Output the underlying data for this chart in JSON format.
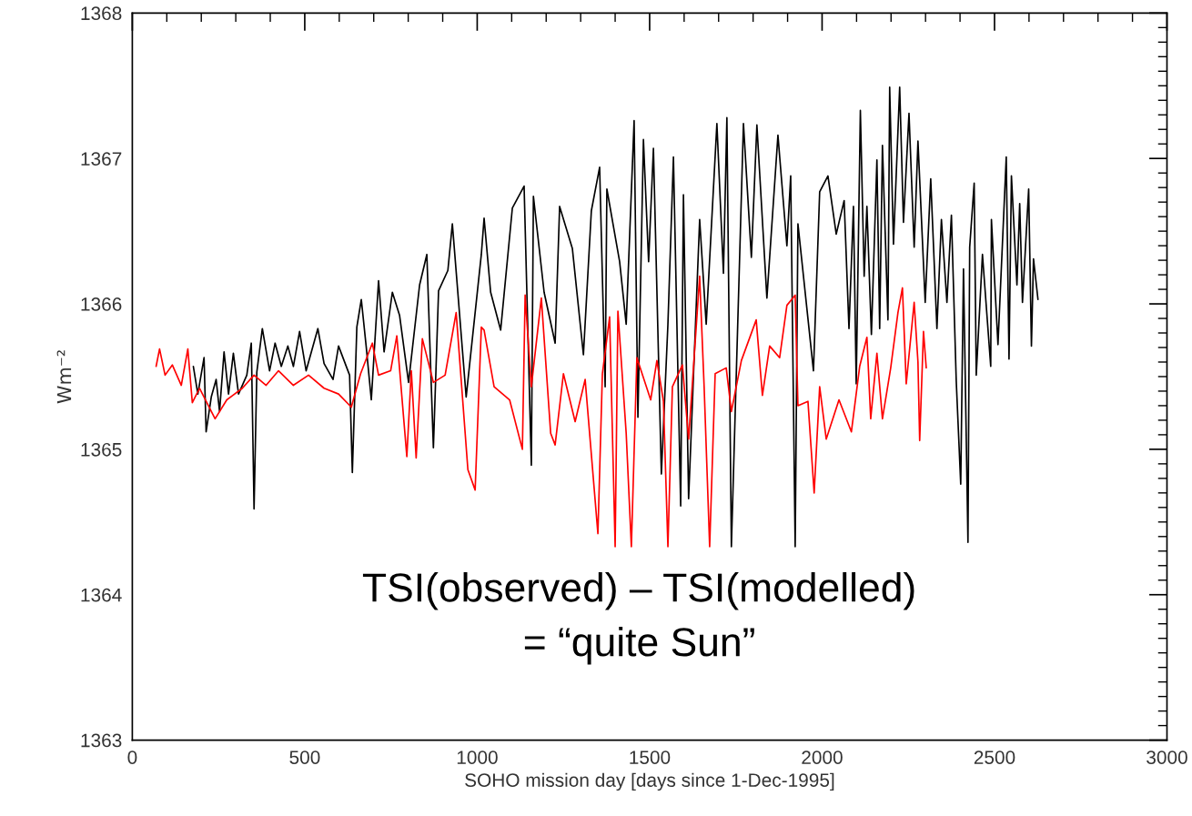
{
  "chart_data": {
    "type": "line",
    "xlabel": "SOHO mission day [days since 1-Dec-1995]",
    "ylabel": "Wm⁻²",
    "xlim": [
      0,
      3000
    ],
    "xticks": [
      0,
      500,
      1000,
      1500,
      2000,
      2500,
      3000
    ],
    "ylim": [
      1363,
      1368
    ],
    "yticks": [
      1363,
      1364,
      1365,
      1366,
      1367,
      1368
    ],
    "grid": false,
    "legend": false,
    "marker": "none",
    "line_style": "solid",
    "annotations": [
      "TSI(observed) – TSI(modelled)",
      "= “quite Sun”"
    ],
    "series": [
      {
        "color": "#000000",
        "x": [
          177,
          190,
          208,
          214,
          229,
          243,
          253,
          266,
          279,
          293,
          308,
          332,
          345,
          353,
          361,
          377,
          398,
          414,
          432,
          451,
          467,
          485,
          504,
          538,
          556,
          582,
          598,
          630,
          638,
          651,
          664,
          678,
          693,
          714,
          730,
          754,
          775,
          801,
          833,
          854,
          873,
          888,
          915,
          928,
          968,
          1012,
          1020,
          1039,
          1068,
          1102,
          1136,
          1157,
          1163,
          1194,
          1226,
          1239,
          1276,
          1308,
          1331,
          1355,
          1371,
          1376,
          1413,
          1432,
          1455,
          1466,
          1482,
          1497,
          1511,
          1534,
          1553,
          1569,
          1590,
          1598,
          1613,
          1645,
          1664,
          1695,
          1714,
          1724,
          1737,
          1772,
          1795,
          1811,
          1840,
          1872,
          1898,
          1909,
          1922,
          1930,
          1975,
          1993,
          2017,
          2041,
          2064,
          2078,
          2091,
          2099,
          2111,
          2122,
          2130,
          2143,
          2159,
          2167,
          2175,
          2191,
          2196,
          2207,
          2225,
          2236,
          2252,
          2267,
          2278,
          2299,
          2315,
          2333,
          2346,
          2362,
          2375,
          2389,
          2402,
          2410,
          2423,
          2428,
          2441,
          2447,
          2465,
          2489,
          2491,
          2510,
          2534,
          2542,
          2549,
          2565,
          2573,
          2581,
          2599,
          2607,
          2613,
          2626
        ],
        "values": [
          1365.57,
          1365.38,
          1365.63,
          1365.12,
          1365.36,
          1365.48,
          1365.26,
          1365.67,
          1365.38,
          1365.66,
          1365.38,
          1365.51,
          1365.73,
          1364.59,
          1365.53,
          1365.83,
          1365.54,
          1365.73,
          1365.57,
          1365.71,
          1365.57,
          1365.81,
          1365.54,
          1365.83,
          1365.59,
          1365.48,
          1365.71,
          1365.51,
          1364.84,
          1365.84,
          1366.03,
          1365.71,
          1365.34,
          1366.16,
          1365.67,
          1366.08,
          1365.92,
          1365.46,
          1366.13,
          1366.34,
          1365.01,
          1366.09,
          1366.23,
          1366.55,
          1365.36,
          1366.34,
          1366.59,
          1366.08,
          1365.82,
          1366.66,
          1366.81,
          1364.89,
          1366.74,
          1366.08,
          1365.73,
          1366.67,
          1366.38,
          1365.65,
          1366.64,
          1366.94,
          1365.43,
          1366.79,
          1366.29,
          1365.86,
          1367.26,
          1365.22,
          1367.13,
          1366.29,
          1367.07,
          1364.83,
          1365.86,
          1367.01,
          1364.61,
          1366.75,
          1364.66,
          1366.58,
          1365.86,
          1367.24,
          1366.21,
          1367.28,
          1364.33,
          1367.24,
          1366.32,
          1367.23,
          1366.04,
          1367.16,
          1366.4,
          1366.88,
          1364.33,
          1366.55,
          1365.54,
          1366.77,
          1366.88,
          1366.48,
          1366.71,
          1365.83,
          1366.67,
          1365.45,
          1367.33,
          1366.19,
          1366.67,
          1365.79,
          1366.99,
          1365.83,
          1367.09,
          1365.89,
          1367.49,
          1366.41,
          1367.49,
          1366.56,
          1367.31,
          1366.39,
          1367.12,
          1366.01,
          1366.86,
          1365.83,
          1366.58,
          1366.01,
          1366.61,
          1365.47,
          1364.76,
          1366.24,
          1364.36,
          1366.39,
          1366.83,
          1365.51,
          1366.34,
          1365.57,
          1366.58,
          1365.72,
          1367.01,
          1365.62,
          1366.88,
          1366.13,
          1366.69,
          1366.01,
          1366.79,
          1365.71,
          1366.31,
          1366.03
        ]
      },
      {
        "color": "#ff0000",
        "x": [
          69,
          79,
          95,
          116,
          142,
          161,
          174,
          195,
          240,
          274,
          319,
          353,
          388,
          424,
          467,
          511,
          556,
          598,
          635,
          662,
          696,
          714,
          749,
          767,
          796,
          809,
          823,
          841,
          873,
          907,
          939,
          973,
          994,
          1012,
          1020,
          1049,
          1094,
          1131,
          1139,
          1157,
          1186,
          1213,
          1226,
          1250,
          1284,
          1313,
          1350,
          1363,
          1384,
          1400,
          1408,
          1432,
          1447,
          1463,
          1503,
          1521,
          1540,
          1553,
          1566,
          1595,
          1613,
          1645,
          1658,
          1674,
          1690,
          1722,
          1737,
          1766,
          1809,
          1827,
          1848,
          1877,
          1898,
          1922,
          1930,
          1959,
          1977,
          1993,
          2012,
          2049,
          2085,
          2109,
          2130,
          2141,
          2159,
          2175,
          2199,
          2220,
          2233,
          2244,
          2267,
          2278,
          2283,
          2294,
          2302
        ],
        "values": [
          1365.57,
          1365.69,
          1365.51,
          1365.58,
          1365.44,
          1365.69,
          1365.32,
          1365.42,
          1365.21,
          1365.34,
          1365.42,
          1365.51,
          1365.44,
          1365.54,
          1365.44,
          1365.51,
          1365.42,
          1365.38,
          1365.29,
          1365.52,
          1365.73,
          1365.51,
          1365.54,
          1365.78,
          1364.95,
          1365.54,
          1364.94,
          1365.76,
          1365.46,
          1365.51,
          1365.94,
          1364.86,
          1364.72,
          1365.84,
          1365.82,
          1365.43,
          1365.34,
          1365.0,
          1366.06,
          1365.43,
          1366.04,
          1365.11,
          1365.03,
          1365.52,
          1365.19,
          1365.48,
          1364.42,
          1365.52,
          1365.91,
          1364.33,
          1365.95,
          1365.11,
          1364.33,
          1365.63,
          1365.34,
          1365.61,
          1365.33,
          1364.33,
          1365.43,
          1365.58,
          1365.07,
          1366.19,
          1365.43,
          1364.33,
          1365.52,
          1365.56,
          1365.26,
          1365.61,
          1365.89,
          1365.37,
          1365.71,
          1365.63,
          1365.99,
          1366.06,
          1365.3,
          1365.33,
          1364.7,
          1365.43,
          1365.07,
          1365.34,
          1365.12,
          1365.57,
          1365.77,
          1365.21,
          1365.66,
          1365.21,
          1365.56,
          1365.94,
          1366.11,
          1365.45,
          1366.01,
          1365.6,
          1365.06,
          1365.81,
          1365.56
        ]
      }
    ]
  }
}
